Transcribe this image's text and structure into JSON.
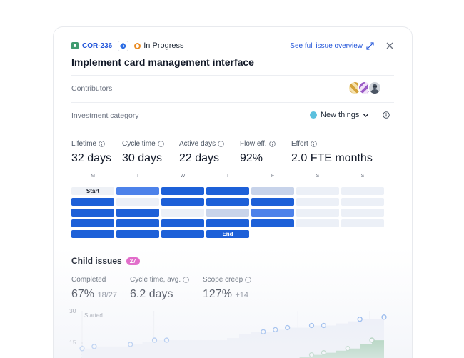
{
  "header": {
    "issue_key": "COR-236",
    "status": "In Progress",
    "full_overview_link": "See full issue overview",
    "title": "Implement card management interface"
  },
  "contributors": {
    "label": "Contributors",
    "count": 3
  },
  "investment": {
    "label": "Investment category",
    "value": "New things",
    "color": "#5bc0de"
  },
  "stats": [
    {
      "label": "Lifetime",
      "value": "32 days"
    },
    {
      "label": "Cycle time",
      "value": "30 days"
    },
    {
      "label": "Active days",
      "value": "22 days"
    },
    {
      "label": "Flow eff.",
      "value": "92%"
    },
    {
      "label": "Effort",
      "value": "2.0 FTE months"
    }
  ],
  "calendar": {
    "days": [
      "M",
      "T",
      "W",
      "T",
      "F",
      "S",
      "S"
    ],
    "start_label": "Start",
    "end_label": "End",
    "weeks": [
      [
        "start",
        "medium",
        "dark",
        "dark",
        "pale",
        "empty",
        "empty"
      ],
      [
        "dark",
        "empty",
        "dark",
        "dark",
        "dark",
        "empty",
        "empty"
      ],
      [
        "dark",
        "dark",
        "empty",
        "pale",
        "medium",
        "empty",
        "empty"
      ],
      [
        "dark",
        "dark",
        "dark",
        "dark",
        "dark",
        "empty",
        "empty"
      ],
      [
        "dark",
        "dark",
        "dark",
        "end",
        "none",
        "none",
        "none"
      ]
    ],
    "colors": {
      "dark": "#1d60d8",
      "medium": "#4d82ea",
      "pale": "#c7d3ea",
      "empty": "#ecf0f7",
      "start": "#eef1f6"
    }
  },
  "child_issues": {
    "label": "Child issues",
    "count": "27",
    "stats": [
      {
        "label": "Completed",
        "value": "67%",
        "sub": "18/27"
      },
      {
        "label": "Cycle time, avg.",
        "value": "6.2 days",
        "sub": ""
      },
      {
        "label": "Scope creep",
        "value": "127%",
        "sub": "+14"
      }
    ]
  },
  "chart_data": {
    "type": "area",
    "ylim": [
      0,
      30
    ],
    "y_ticks": [
      "30",
      "15"
    ],
    "annotation": "Started",
    "series": [
      {
        "values": [
          12,
          13,
          13,
          13,
          14,
          15,
          16,
          16,
          16,
          16,
          16,
          16,
          17,
          19,
          20,
          20,
          21,
          22,
          22,
          23,
          23,
          24,
          25,
          26,
          26,
          27
        ]
      },
      {
        "values": [
          0,
          0,
          0,
          0,
          0,
          0,
          0,
          1,
          2,
          2,
          3,
          3,
          3,
          4,
          4,
          5,
          5,
          6,
          8,
          9,
          10,
          11,
          12,
          14,
          16,
          18
        ]
      }
    ],
    "colors": {
      "scope_area": "#e9ecf6",
      "completed_area": "#3e9a57",
      "scope_marker": "#3a7de0",
      "completed_marker": "#2f8a49"
    }
  }
}
